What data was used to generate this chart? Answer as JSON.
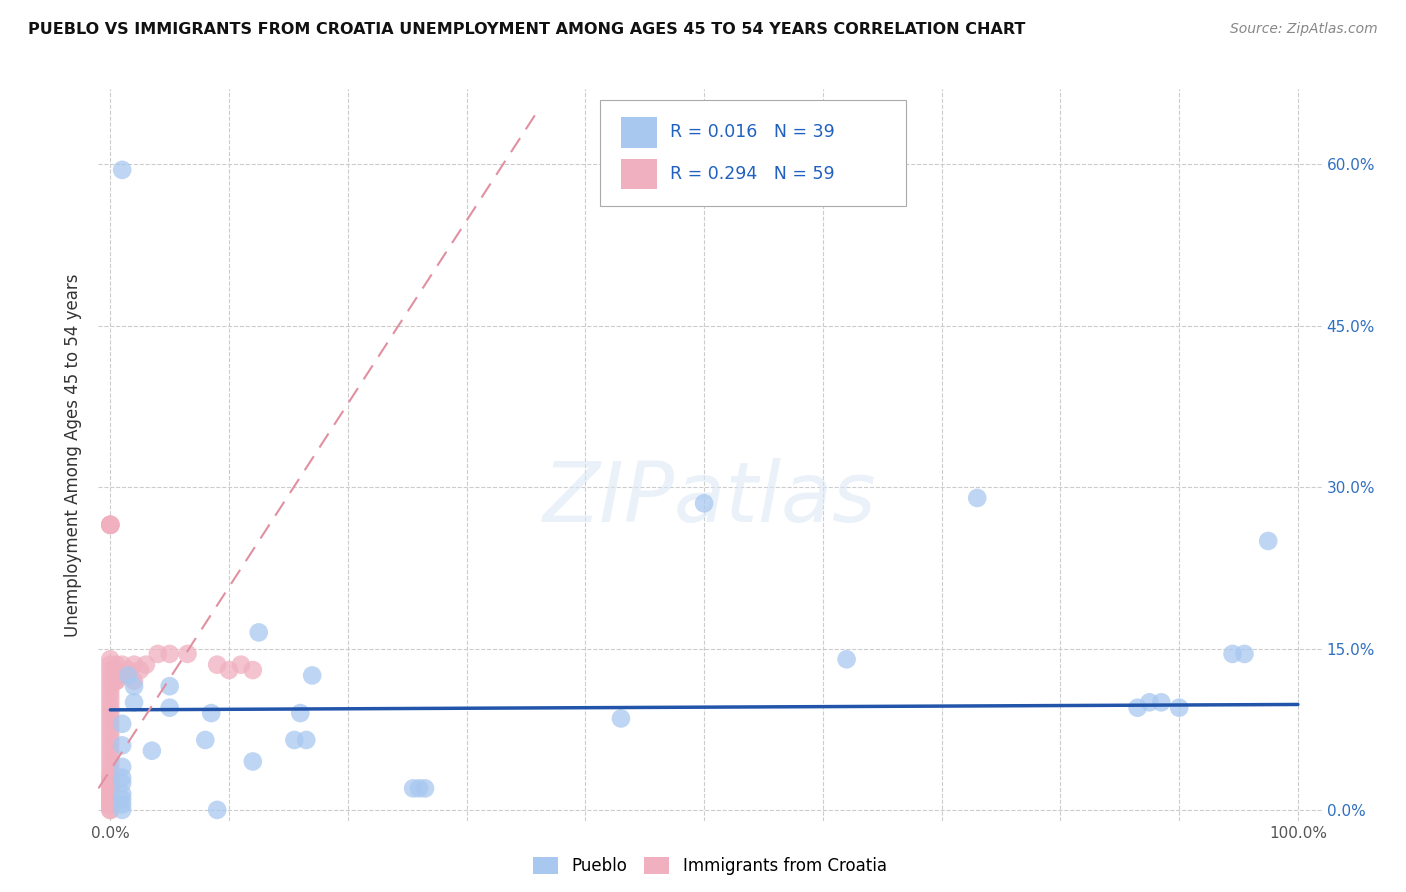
{
  "title": "PUEBLO VS IMMIGRANTS FROM CROATIA UNEMPLOYMENT AMONG AGES 45 TO 54 YEARS CORRELATION CHART",
  "source": "Source: ZipAtlas.com",
  "ylabel": "Unemployment Among Ages 45 to 54 years",
  "xlim": [
    -0.01,
    1.02
  ],
  "ylim": [
    -0.01,
    0.67
  ],
  "xticks": [
    0.0,
    0.1,
    0.2,
    0.3,
    0.4,
    0.5,
    0.6,
    0.7,
    0.8,
    0.9,
    1.0
  ],
  "xticklabels": [
    "0.0%",
    "",
    "",
    "",
    "",
    "",
    "",
    "",
    "",
    "",
    "100.0%"
  ],
  "yticks": [
    0.0,
    0.15,
    0.3,
    0.45,
    0.6
  ],
  "yticklabels_right": [
    "0.0%",
    "15.0%",
    "30.0%",
    "45.0%",
    "60.0%"
  ],
  "pueblo_color": "#a8c8f0",
  "croatia_color": "#f0b0c0",
  "pueblo_R": 0.016,
  "pueblo_N": 39,
  "croatia_R": 0.294,
  "croatia_N": 59,
  "watermark_text": "ZIPatlas",
  "pueblo_points_x": [
    0.01,
    0.01,
    0.01,
    0.01,
    0.01,
    0.01,
    0.01,
    0.01,
    0.01,
    0.01,
    0.02,
    0.02,
    0.015,
    0.035,
    0.05,
    0.05,
    0.08,
    0.085,
    0.09,
    0.12,
    0.125,
    0.155,
    0.16,
    0.165,
    0.17,
    0.255,
    0.26,
    0.265,
    0.43,
    0.5,
    0.62,
    0.73,
    0.865,
    0.875,
    0.885,
    0.9,
    0.945,
    0.955,
    0.975
  ],
  "pueblo_points_y": [
    0.0,
    0.005,
    0.01,
    0.015,
    0.025,
    0.03,
    0.04,
    0.06,
    0.08,
    0.595,
    0.1,
    0.115,
    0.125,
    0.055,
    0.095,
    0.115,
    0.065,
    0.09,
    0.0,
    0.045,
    0.165,
    0.065,
    0.09,
    0.065,
    0.125,
    0.02,
    0.02,
    0.02,
    0.085,
    0.285,
    0.14,
    0.29,
    0.095,
    0.1,
    0.1,
    0.095,
    0.145,
    0.145,
    0.25
  ],
  "croatia_points_x": [
    0.0,
    0.0,
    0.0,
    0.0,
    0.0,
    0.0,
    0.0,
    0.0,
    0.0,
    0.0,
    0.0,
    0.0,
    0.0,
    0.0,
    0.0,
    0.0,
    0.0,
    0.0,
    0.0,
    0.0,
    0.0,
    0.0,
    0.0,
    0.0,
    0.0,
    0.0,
    0.0,
    0.0,
    0.0,
    0.0,
    0.0,
    0.0,
    0.0,
    0.0,
    0.0,
    0.0,
    0.0,
    0.0,
    0.0,
    0.0,
    0.005,
    0.005,
    0.005,
    0.005,
    0.005,
    0.01,
    0.01,
    0.015,
    0.02,
    0.02,
    0.025,
    0.03,
    0.04,
    0.05,
    0.065,
    0.09,
    0.1,
    0.11,
    0.12
  ],
  "croatia_points_y": [
    0.0,
    0.005,
    0.01,
    0.015,
    0.02,
    0.025,
    0.03,
    0.035,
    0.04,
    0.045,
    0.05,
    0.055,
    0.06,
    0.065,
    0.07,
    0.075,
    0.08,
    0.085,
    0.09,
    0.095,
    0.1,
    0.105,
    0.11,
    0.115,
    0.12,
    0.125,
    0.13,
    0.135,
    0.14,
    0.0,
    0.005,
    0.01,
    0.015,
    0.02,
    0.025,
    0.03,
    0.265,
    0.265,
    0.265,
    0.265,
    0.12,
    0.12,
    0.125,
    0.13,
    0.135,
    0.125,
    0.135,
    0.13,
    0.12,
    0.135,
    0.13,
    0.135,
    0.145,
    0.145,
    0.145,
    0.135,
    0.13,
    0.135,
    0.13
  ],
  "pueblo_trend_x": [
    0.0,
    1.0
  ],
  "pueblo_trend_y": [
    0.093,
    0.098
  ],
  "croatia_trend_x": [
    -0.01,
    0.36
  ],
  "croatia_trend_y": [
    0.02,
    0.65
  ]
}
